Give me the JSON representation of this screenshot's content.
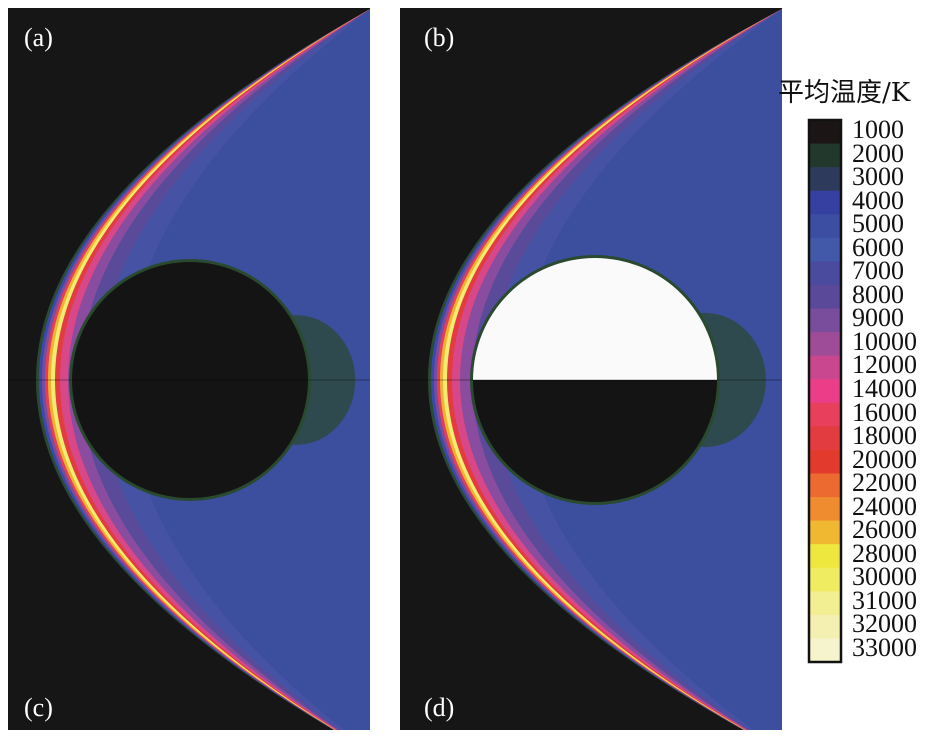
{
  "chart_data": {
    "type": "heatmap",
    "description_panels": [
      "(a)",
      "(b)",
      "(c)",
      "(d)"
    ],
    "colorbar": {
      "title": "平均温度/K",
      "levels": [
        1000,
        2000,
        3000,
        4000,
        5000,
        6000,
        7000,
        8000,
        9000,
        10000,
        12000,
        14000,
        16000,
        18000,
        20000,
        22000,
        24000,
        26000,
        28000,
        30000,
        31000,
        32000,
        33000
      ],
      "colors": [
        "#1b1515",
        "#22382c",
        "#2e3a5c",
        "#3540a0",
        "#3c4ea2",
        "#4258a8",
        "#4a4a9e",
        "#5a4898",
        "#7a4c9c",
        "#9e4c98",
        "#c8478e",
        "#ea3f88",
        "#e8405c",
        "#e23c40",
        "#e23a2c",
        "#ec6a30",
        "#f08c30",
        "#f0b830",
        "#eee83e",
        "#f0ec62",
        "#f2ee92",
        "#f4f0b2",
        "#f6f4cc"
      ]
    },
    "panels": [
      {
        "label": "(a)",
        "position": "top-left",
        "sphere_fill": "#141414"
      },
      {
        "label": "(b)",
        "position": "top-right",
        "sphere_fill": "#ffffff"
      },
      {
        "label": "(c)",
        "position": "bottom-left",
        "sphere_fill": "#141414"
      },
      {
        "label": "(d)",
        "position": "bottom-right",
        "sphere_fill": "#141414"
      }
    ]
  }
}
